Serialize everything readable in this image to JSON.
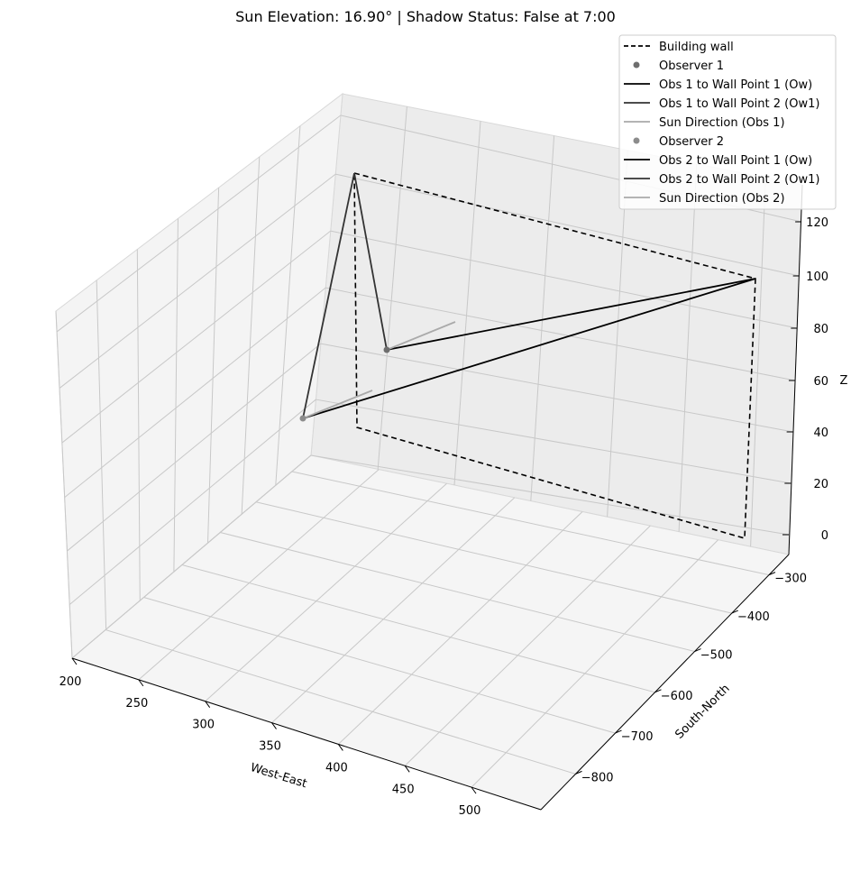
{
  "chart_data": {
    "type": "line",
    "projection": "3d",
    "title": "Sun Elevation: 16.90° | Shadow Status: False at 7:00",
    "xlabel": "West-East",
    "ylabel": "South-North",
    "zlabel": "Z",
    "x_ticks": [
      "200",
      "250",
      "300",
      "350",
      "400",
      "450",
      "500"
    ],
    "y_ticks": [
      "−300",
      "−400",
      "−500",
      "−600",
      "−700",
      "−800"
    ],
    "z_ticks": [
      "0",
      "20",
      "40",
      "60",
      "80",
      "100",
      "120"
    ],
    "grid": true,
    "legend_position": "top-right",
    "series": [
      {
        "name": "Building wall",
        "style": "dashed",
        "color": "#000000"
      },
      {
        "name": "Observer 1",
        "style": "marker",
        "color": "#6e6e6e"
      },
      {
        "name": "Obs 1 to Wall Point 1 (Ow)",
        "style": "solid",
        "color": "#000000"
      },
      {
        "name": "Obs 1 to Wall Point 2 (Ow1)",
        "style": "solid",
        "color": "#333333"
      },
      {
        "name": "Sun Direction (Obs 1)",
        "style": "solid",
        "color": "#aaaaaa"
      },
      {
        "name": "Observer 2",
        "style": "marker",
        "color": "#8c8c8c"
      },
      {
        "name": "Obs 2 to Wall Point 1 (Ow)",
        "style": "solid",
        "color": "#000000"
      },
      {
        "name": "Obs 2 to Wall Point 2 (Ow1)",
        "style": "solid",
        "color": "#333333"
      },
      {
        "name": "Sun Direction (Obs 2)",
        "style": "solid",
        "color": "#aaaaaa"
      }
    ]
  }
}
